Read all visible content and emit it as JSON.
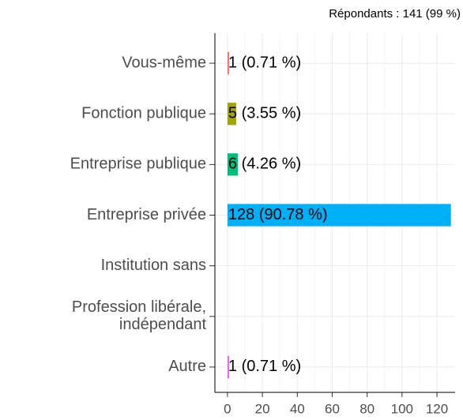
{
  "chart_data": {
    "type": "bar",
    "orientation": "horizontal",
    "subtitle": "Répondants : 141 (99 %)",
    "categories": [
      "Vous-même",
      "Fonction publique",
      "Entreprise publique",
      "Entreprise privée",
      "Institution sans",
      "Profession libérale,\nindépendant",
      "Autre"
    ],
    "values": [
      1,
      5,
      6,
      128,
      0,
      0,
      1
    ],
    "value_labels": [
      "1 (0.71 %)",
      "5 (3.55 %)",
      "6 (4.26 %)",
      "128 (90.78 %)",
      null,
      null,
      "1 (0.71 %)"
    ],
    "colors": [
      "#F8766D",
      "#A3A500",
      "#00BF7D",
      "#00B0F6",
      "#00BFC4",
      "#9590FF",
      "#E76BF3"
    ],
    "xlim": [
      -7.2,
      130.4
    ],
    "xticks": [
      0,
      20,
      40,
      60,
      80,
      100,
      120
    ],
    "grid": true
  }
}
